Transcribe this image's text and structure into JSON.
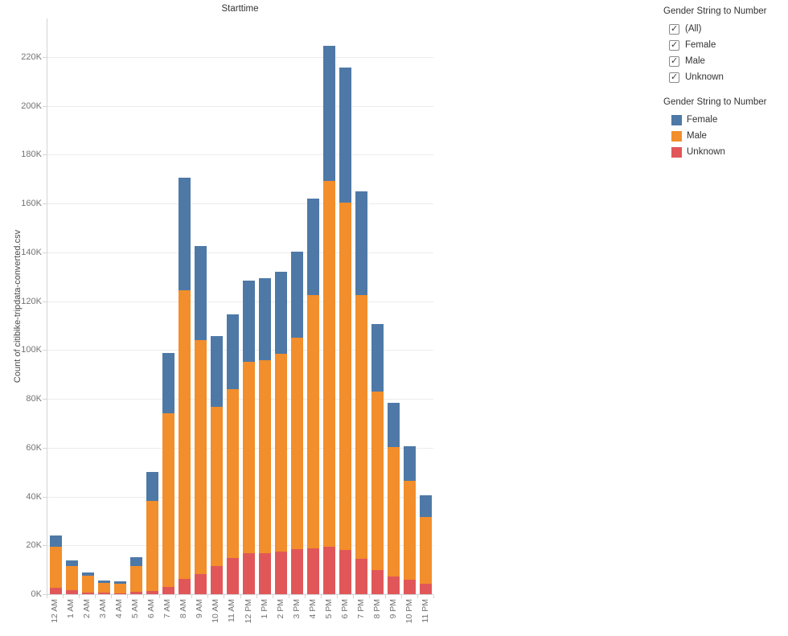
{
  "chart": {
    "title": "Starttime",
    "y_axis_title": "Count of citibike-tripdata-converted.csv"
  },
  "chart_data": {
    "type": "bar",
    "stacked": true,
    "title": "Starttime",
    "xlabel": "",
    "ylabel": "Count of citibike-tripdata-converted.csv",
    "ylim": [
      0,
      235000
    ],
    "ytick_interval": 20000,
    "ytick_labels": [
      "0K",
      "20K",
      "40K",
      "60K",
      "80K",
      "100K",
      "120K",
      "140K",
      "160K",
      "180K",
      "200K",
      "220K"
    ],
    "grid": true,
    "legend_position": "right",
    "categories": [
      "12 AM",
      "1 AM",
      "2 AM",
      "3 AM",
      "4 AM",
      "5 AM",
      "6 AM",
      "7 AM",
      "8 AM",
      "9 AM",
      "10 AM",
      "11 AM",
      "12 PM",
      "1 PM",
      "2 PM",
      "3 PM",
      "4 PM",
      "5 PM",
      "6 PM",
      "7 PM",
      "8 PM",
      "9 PM",
      "10 PM",
      "11 PM"
    ],
    "stack_order": "bottom-to-top",
    "series": [
      {
        "name": "Unknown",
        "color": "#e15759",
        "values": [
          2600,
          1600,
          700,
          700,
          300,
          1000,
          1400,
          3000,
          6300,
          8200,
          11400,
          14700,
          16900,
          16700,
          17500,
          18300,
          18700,
          19400,
          18100,
          14500,
          9900,
          7200,
          5900,
          4300
        ]
      },
      {
        "name": "Male",
        "color": "#f28e2b",
        "values": [
          16800,
          9900,
          6800,
          3800,
          4000,
          10400,
          36900,
          71100,
          118100,
          95800,
          65300,
          69300,
          78200,
          79200,
          80900,
          86700,
          103800,
          149900,
          142300,
          108000,
          73100,
          53000,
          40500,
          27300
        ]
      },
      {
        "name": "Female",
        "color": "#4e79a7",
        "values": [
          4600,
          2300,
          1300,
          1100,
          1000,
          3900,
          11800,
          24700,
          46100,
          38600,
          29000,
          30600,
          33300,
          33500,
          33600,
          35300,
          39500,
          55300,
          55300,
          42500,
          27600,
          18100,
          14200,
          8900
        ]
      }
    ]
  },
  "filter_panel": {
    "title": "Gender String to Number",
    "items": [
      {
        "label": "(All)",
        "checked": true
      },
      {
        "label": "Female",
        "checked": true
      },
      {
        "label": "Male",
        "checked": true
      },
      {
        "label": "Unknown",
        "checked": true
      }
    ]
  },
  "legend_panel": {
    "title": "Gender String to Number",
    "items": [
      {
        "label": "Female",
        "color": "#4e79a7"
      },
      {
        "label": "Male",
        "color": "#f28e2b"
      },
      {
        "label": "Unknown",
        "color": "#e15759"
      }
    ]
  }
}
